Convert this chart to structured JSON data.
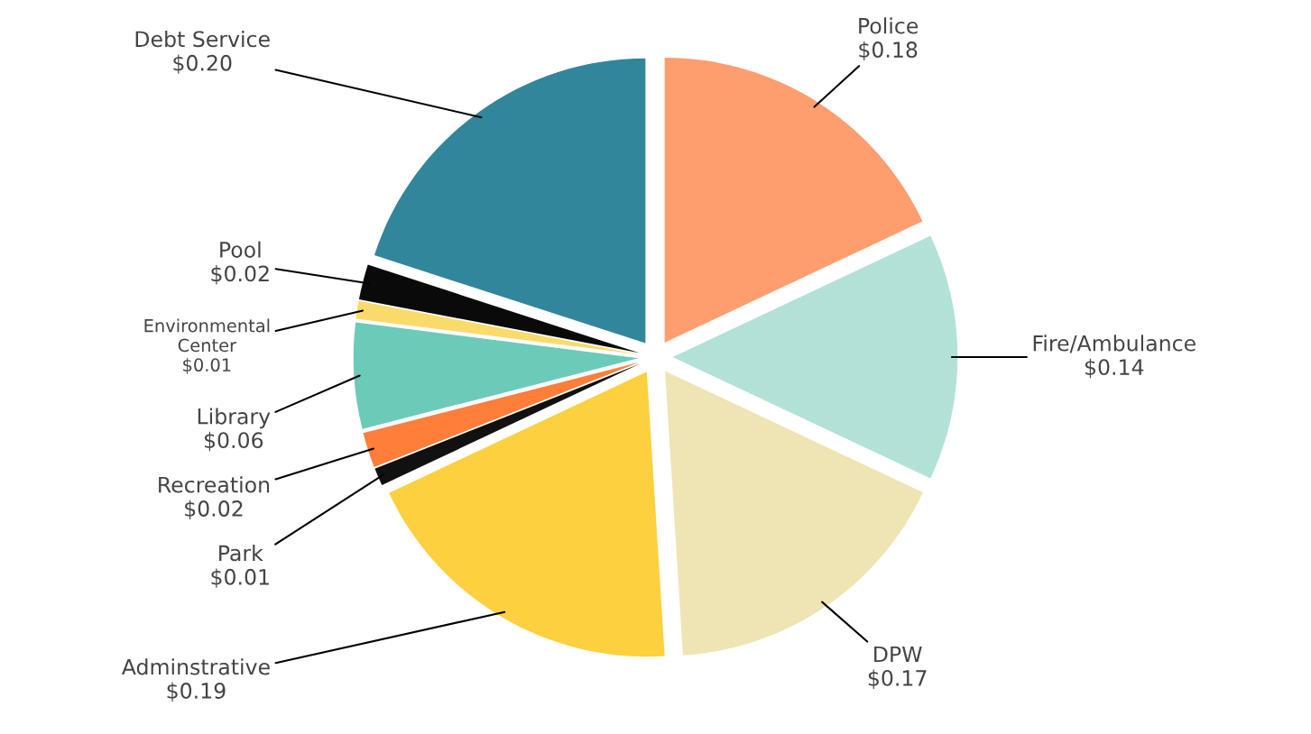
{
  "chart_data": {
    "type": "pie",
    "categories": [
      "Police",
      "Fire/Ambulance",
      "DPW",
      "Adminstrative",
      "Park",
      "Recreation",
      "Library",
      "Environmental\nCenter",
      "Pool",
      "Debt Service"
    ],
    "values": [
      0.18,
      0.14,
      0.17,
      0.19,
      0.01,
      0.02,
      0.06,
      0.01,
      0.02,
      0.2
    ],
    "colors": [
      "#fe9e6e",
      "#b2e2d7",
      "#efe4b3",
      "#fcd03f",
      "#111111",
      "#fe7e3a",
      "#6ccab9",
      "#fada6a",
      "#0a0a0a",
      "#32869c"
    ],
    "value_labels": [
      "$0.18",
      "$0.14",
      "$0.17",
      "$0.19",
      "$0.01",
      "$0.02",
      "$0.06",
      "$0.01",
      "$0.02",
      "$0.20"
    ],
    "legend": false
  }
}
